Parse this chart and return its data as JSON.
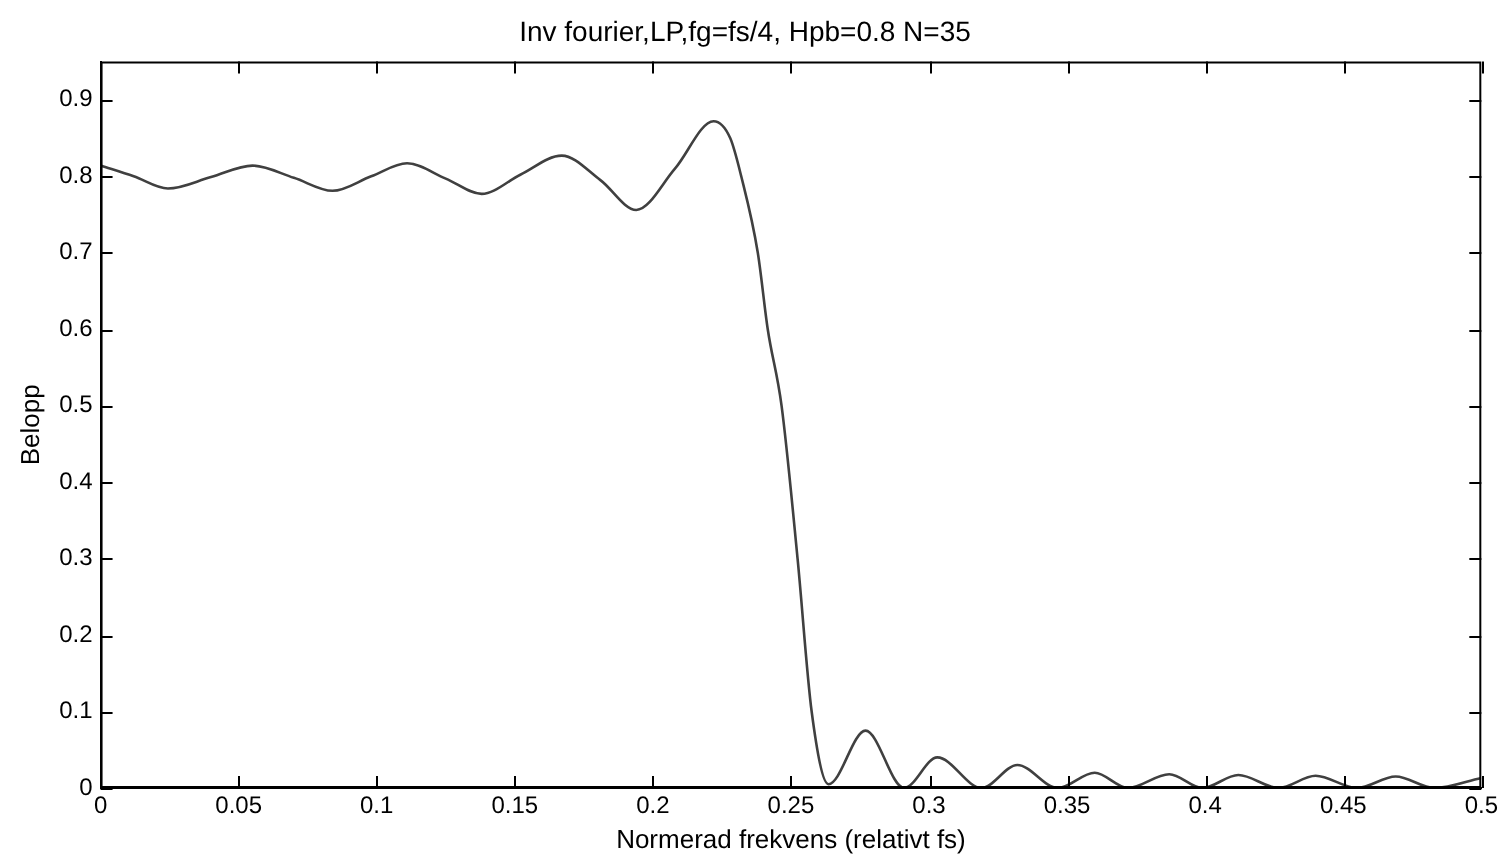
{
  "chart_data": {
    "type": "line",
    "title": "Inv fourier,LP,fg=fs/4, Hpb=0.8 N=35",
    "xlabel": "Normerad frekvens (relativt fs)",
    "ylabel": "Belopp",
    "x": [
      0,
      0.012,
      0.0244,
      0.04,
      0.055,
      0.07,
      0.084,
      0.098,
      0.111,
      0.125,
      0.138,
      0.152,
      0.167,
      0.181,
      0.194,
      0.208,
      0.222,
      0.228,
      0.232,
      0.238,
      0.2416,
      0.2466,
      0.2524,
      0.2575,
      0.2636,
      0.277,
      0.291,
      0.303,
      0.319,
      0.332,
      0.3466,
      0.36,
      0.372,
      0.387,
      0.399,
      0.412,
      0.4266,
      0.44,
      0.455,
      0.469,
      0.483,
      0.5
    ],
    "series": [
      {
        "color": "#404040",
        "values": [
          0.814,
          0.8,
          0.784,
          0.799,
          0.814,
          0.798,
          0.781,
          0.8,
          0.817,
          0.797,
          0.777,
          0.802,
          0.827,
          0.795,
          0.756,
          0.81,
          0.872,
          0.85,
          0.8,
          0.7,
          0.6,
          0.5,
          0.3,
          0.1,
          0.005,
          0.075,
          0,
          0.04,
          0,
          0.03,
          0,
          0.02,
          0,
          0.018,
          0,
          0.017,
          0,
          0.016,
          0,
          0.015,
          0,
          0.013
        ]
      }
    ],
    "xlim": [
      0,
      0.5
    ],
    "xticks": [
      0,
      0.05,
      0.1,
      0.15,
      0.2,
      0.25,
      0.3,
      0.35,
      0.4,
      0.45,
      0.5
    ],
    "ylim": [
      0,
      0.95
    ],
    "yticks": [
      0,
      0.1,
      0.2,
      0.3,
      0.4,
      0.5,
      0.6,
      0.7,
      0.8,
      0.9
    ],
    "marker": "none",
    "line_style": "solid",
    "legend": false
  }
}
